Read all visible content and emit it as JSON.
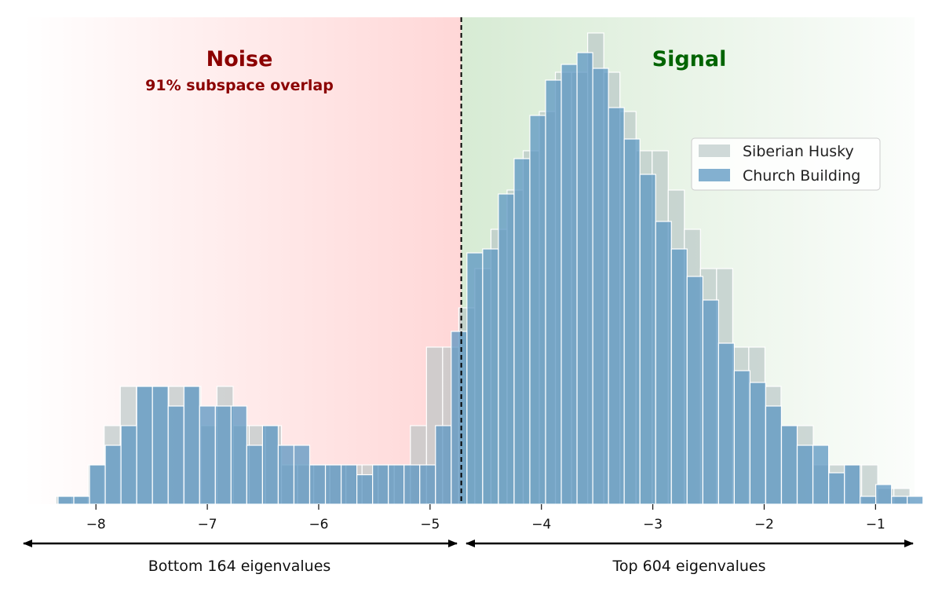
{
  "colors": {
    "noise_region": "#ffd7d7",
    "signal_region": "#dcedd9",
    "noise_title": "#8b0000",
    "signal_title": "#006400",
    "series_husky": "#b7c5c5",
    "series_church": "#5b95c2",
    "threshold_line": "#000000"
  },
  "annotations": {
    "noise_title": "Noise",
    "noise_subtitle": "91% subspace overlap",
    "signal_title": "Signal",
    "bottom_range_label": "Bottom 164 eigenvalues",
    "top_range_label": "Top 604 eigenvalues"
  },
  "legend": {
    "items": [
      {
        "label": "Siberian Husky",
        "color": "#b7c5c5"
      },
      {
        "label": "Church Building",
        "color": "#5b95c2"
      }
    ]
  },
  "chart_data": {
    "type": "bar",
    "histogram": true,
    "x_range": [
      -8.65,
      -0.65
    ],
    "y_range": [
      0,
      12.4
    ],
    "xticks": [
      -8,
      -7,
      -6,
      -5,
      -4,
      -3,
      -2,
      -1
    ],
    "xtick_labels": [
      "−8",
      "−7",
      "−6",
      "−5",
      "−4",
      "−3",
      "−2",
      "−1"
    ],
    "threshold_x": -4.72,
    "grid": false,
    "legend_position": "upper-right",
    "series": [
      {
        "name": "Siberian Husky",
        "bin_start": -8.36,
        "bin_width": 0.1447,
        "values": [
          0.2,
          0.2,
          1,
          2,
          3,
          3,
          3,
          3,
          3,
          2,
          3,
          2,
          2,
          2,
          1,
          1,
          1,
          1,
          1,
          1,
          1,
          1,
          2,
          4,
          4,
          5,
          6,
          7,
          8,
          9,
          10,
          11,
          11,
          12,
          11,
          10,
          9,
          9,
          8,
          7,
          6,
          6,
          4,
          4,
          3,
          2,
          2,
          1,
          1,
          1,
          1,
          0.4,
          0.4
        ]
      },
      {
        "name": "Church Building",
        "bin_start": -8.34,
        "bin_width": 0.1412,
        "values": [
          0.2,
          0.2,
          1,
          1.5,
          2,
          3,
          3,
          2.5,
          3,
          2.5,
          2.5,
          2.5,
          1.5,
          2,
          1.5,
          1.5,
          1,
          1,
          1,
          0.75,
          1,
          1,
          1,
          1,
          2,
          4.4,
          6.4,
          6.5,
          7.9,
          8.8,
          9.9,
          10.8,
          11.2,
          11.5,
          11.1,
          10.1,
          9.3,
          8.4,
          7.2,
          6.5,
          5.8,
          5.2,
          4.1,
          3.4,
          3.1,
          2.5,
          2,
          1.5,
          1.5,
          0.8,
          1,
          0.2,
          0.5,
          0.2,
          0.2
        ]
      }
    ]
  }
}
